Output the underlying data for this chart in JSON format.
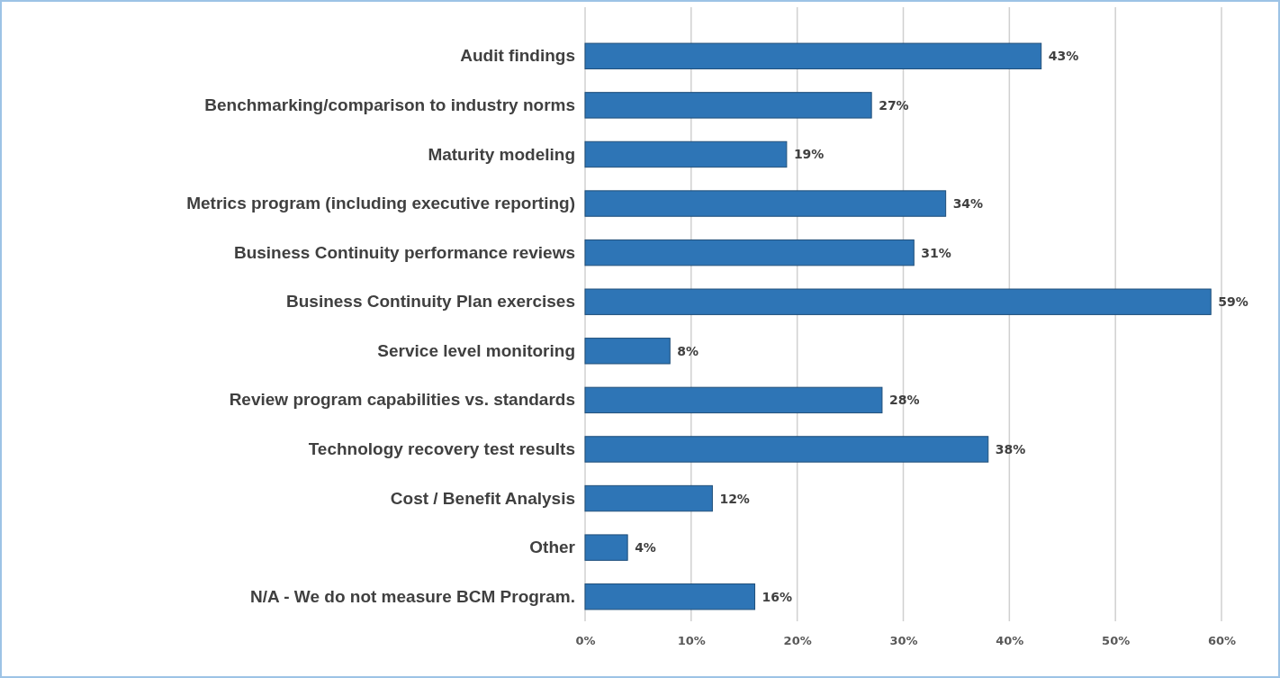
{
  "chart_data": {
    "type": "bar",
    "orientation": "horizontal",
    "categories": [
      "Audit findings",
      "Benchmarking/comparison to industry norms",
      "Maturity modeling",
      "Metrics program (including executive reporting)",
      "Business Continuity performance reviews",
      "Business Continuity Plan exercises",
      "Service level monitoring",
      "Review program capabilities vs. standards",
      "Technology recovery test results",
      "Cost / Benefit Analysis",
      "Other",
      "N/A - We do not measure BCM Program."
    ],
    "values": [
      43,
      27,
      19,
      34,
      31,
      59,
      8,
      28,
      38,
      12,
      4,
      16
    ],
    "value_labels": [
      "43%",
      "27%",
      "19%",
      "34%",
      "31%",
      "59%",
      "8%",
      "28%",
      "38%",
      "12%",
      "4%",
      "16%"
    ],
    "color": "#2e75b6",
    "xlim": [
      0,
      60
    ],
    "xticks": [
      {
        "value": 0,
        "label": "0%"
      },
      {
        "value": 10,
        "label": "10%"
      },
      {
        "value": 20,
        "label": "20%"
      },
      {
        "value": 30,
        "label": "30%"
      },
      {
        "value": 40,
        "label": "40%"
      },
      {
        "value": 50,
        "label": "50%"
      },
      {
        "value": 60,
        "label": "60%"
      }
    ],
    "grid": "x"
  }
}
